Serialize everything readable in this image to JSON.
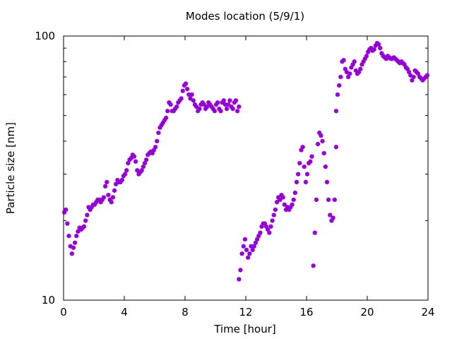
{
  "chart_data": {
    "type": "scatter",
    "title": "Modes location (5/9/1)",
    "xlabel": "Time [hour]",
    "ylabel": "Particle size [nm]",
    "xlim": [
      0,
      24
    ],
    "ylim": [
      10,
      100
    ],
    "y_scale": "log",
    "grid": false,
    "legend": "none",
    "x_ticks": [
      0,
      4,
      8,
      12,
      16,
      20,
      24
    ],
    "x_tick_labels": [
      "0",
      "4",
      "8",
      "12",
      "16",
      "20",
      "24"
    ],
    "y_ticks": [
      10,
      100
    ],
    "y_tick_labels": [
      "10",
      "100"
    ],
    "marker_color": "#9400d3",
    "marker": "asterisk",
    "series": [
      {
        "x": [
          0.05,
          0.15,
          0.25,
          0.35,
          0.45,
          0.55,
          0.65,
          0.75,
          0.85,
          0.95,
          1.05,
          1.15,
          1.25,
          1.35,
          1.45,
          1.55,
          1.65,
          1.75,
          1.85,
          1.95,
          2.05,
          2.15,
          2.25,
          2.35,
          2.45,
          2.55,
          2.65,
          2.75,
          2.85,
          2.95,
          3.05,
          3.15,
          3.25,
          3.35,
          3.45,
          3.55,
          3.65,
          3.75,
          3.85,
          3.95,
          4.05,
          4.15,
          4.25,
          4.35,
          4.45,
          4.55,
          4.65,
          4.75,
          4.85,
          4.95,
          5.05,
          5.15,
          5.25,
          5.35,
          5.45,
          5.55,
          5.65,
          5.75,
          5.85,
          5.95,
          6.05,
          6.15,
          6.25,
          6.35,
          6.45,
          6.55,
          6.65,
          6.75,
          6.85,
          6.95,
          7.05,
          7.15,
          7.25,
          7.35,
          7.45,
          7.55,
          7.65,
          7.75,
          7.85,
          7.95,
          8.05,
          8.15,
          8.25,
          8.35,
          8.45,
          8.55,
          8.65,
          8.75,
          8.85,
          8.95,
          9.05,
          9.15,
          9.25,
          9.35,
          9.45,
          9.55,
          9.65,
          9.75,
          9.85,
          9.95,
          10.05,
          10.15,
          10.25,
          10.35,
          10.45,
          10.55,
          10.65,
          10.75,
          10.85,
          10.95,
          11.05,
          11.15,
          11.25,
          11.35,
          11.45,
          11.55
        ],
        "y": [
          21.5,
          22.0,
          19.5,
          17.5,
          16.0,
          15.0,
          15.8,
          16.5,
          17.5,
          18.2,
          18.8,
          18.5,
          18.8,
          19.0,
          20.0,
          21.0,
          22.5,
          22.0,
          22.5,
          23.0,
          23.0,
          23.5,
          24.0,
          24.0,
          23.5,
          24.0,
          24.5,
          27.0,
          28.0,
          25.0,
          24.0,
          23.5,
          24.5,
          26.0,
          27.5,
          28.5,
          28.0,
          28.0,
          28.5,
          29.5,
          30.0,
          31.0,
          33.0,
          34.0,
          34.5,
          35.5,
          35.0,
          33.5,
          31.0,
          30.0,
          30.5,
          31.0,
          32.0,
          33.0,
          34.0,
          35.5,
          36.0,
          36.5,
          36.0,
          37.0,
          38.0,
          40.0,
          43.0,
          45.0,
          46.0,
          47.0,
          48.0,
          49.0,
          52.0,
          56.0,
          55.0,
          52.0,
          52.0,
          53.0,
          54.0,
          56.0,
          57.0,
          58.0,
          62.0,
          65.0,
          66.0,
          63.0,
          60.0,
          58.0,
          60.0,
          57.0,
          55.0,
          54.0,
          52.0,
          53.0,
          55.0,
          56.0,
          55.0,
          53.0,
          54.0,
          56.0,
          55.0,
          54.0,
          53.0,
          52.0,
          55.0,
          56.0,
          53.0,
          52.0,
          56.0,
          57.0,
          55.0,
          53.0,
          55.0,
          57.0,
          54.0,
          53.0,
          56.0,
          57.0,
          52.0,
          54.0
        ]
      },
      {
        "x": [
          11.55,
          11.65,
          11.75,
          11.85,
          11.95,
          12.05,
          12.15,
          12.25,
          12.35,
          12.45,
          12.55,
          12.65,
          12.75,
          12.85,
          12.95,
          13.05,
          13.15,
          13.25,
          13.35,
          13.45,
          13.55,
          13.65,
          13.75,
          13.85,
          13.95,
          14.05,
          14.15,
          14.25,
          14.35,
          14.45,
          14.55,
          14.65,
          14.75,
          14.85,
          14.95,
          15.05,
          15.15,
          15.25,
          15.35,
          15.45,
          15.55,
          15.65,
          15.75,
          15.85,
          15.95,
          16.05,
          16.15,
          16.25,
          16.35,
          16.45,
          16.55,
          16.65,
          16.75,
          16.85,
          16.95,
          17.05,
          17.15,
          17.25,
          17.35,
          17.45,
          17.55,
          17.65,
          17.75,
          17.85,
          17.95
        ],
        "y": [
          12.0,
          13.0,
          15.0,
          16.0,
          17.0,
          15.5,
          14.5,
          15.0,
          16.0,
          15.5,
          16.0,
          16.5,
          17.0,
          17.5,
          18.0,
          19.0,
          19.5,
          19.5,
          19.0,
          18.5,
          18.0,
          19.0,
          20.0,
          21.0,
          22.0,
          23.5,
          24.5,
          24.0,
          25.0,
          24.5,
          23.0,
          22.0,
          22.5,
          22.0,
          22.5,
          23.0,
          24.0,
          25.5,
          28.0,
          30.0,
          33.0,
          37.0,
          38.0,
          32.0,
          28.0,
          30.0,
          33.0,
          33.5,
          35.0,
          13.5,
          18.0,
          24.0,
          39.0,
          43.0,
          42.0,
          40.0,
          36.0,
          32.0,
          28.0,
          24.0,
          21.0,
          20.0,
          20.5,
          24.0,
          38.0
        ]
      },
      {
        "x": [
          17.95,
          18.05,
          18.15,
          18.25,
          18.35,
          18.45,
          18.55,
          18.65,
          18.75,
          18.85,
          18.95,
          19.05,
          19.15,
          19.25,
          19.35,
          19.45,
          19.55,
          19.65,
          19.75,
          19.85,
          19.95,
          20.05,
          20.15,
          20.25,
          20.35,
          20.45,
          20.55,
          20.65,
          20.75,
          20.85,
          20.95,
          21.05,
          21.15,
          21.25,
          21.35,
          21.45,
          21.55,
          21.65,
          21.75,
          21.85,
          21.95,
          22.05,
          22.15,
          22.25,
          22.35,
          22.45,
          22.55,
          22.65,
          22.75,
          22.85,
          22.95,
          23.05,
          23.15,
          23.25,
          23.35,
          23.45,
          23.55,
          23.65,
          23.75,
          23.85,
          23.95
        ],
        "y": [
          52.0,
          60.0,
          65.0,
          70.0,
          80.0,
          81.0,
          75.0,
          73.0,
          70.0,
          72.0,
          76.0,
          78.0,
          80.0,
          74.0,
          72.0,
          73.0,
          75.0,
          78.0,
          80.0,
          82.0,
          84.0,
          87.0,
          89.0,
          90.0,
          88.0,
          89.0,
          92.0,
          94.0,
          93.0,
          90.0,
          86.0,
          84.0,
          83.0,
          82.0,
          84.0,
          83.0,
          82.0,
          82.0,
          83.0,
          82.0,
          81.0,
          80.0,
          79.0,
          80.0,
          79.0,
          78.0,
          76.0,
          75.0,
          73.0,
          71.0,
          68.0,
          70.0,
          74.0,
          73.0,
          72.0,
          70.0,
          69.0,
          68.0,
          69.0,
          70.0,
          71.0
        ]
      }
    ]
  }
}
